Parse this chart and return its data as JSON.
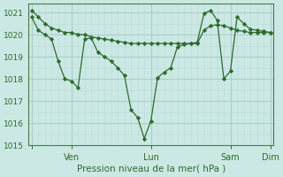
{
  "background_color": "#cce8e4",
  "grid_color_major": "#a8cfc9",
  "grid_color_minor": "#b8ddd8",
  "line_color": "#2d6b2d",
  "marker_color": "#2d6b2d",
  "x_ticks_positions": [
    0,
    6,
    18,
    30,
    36
  ],
  "x_ticks_labels": [
    "",
    "Ven",
    "Lun",
    "Sam",
    "Dim"
  ],
  "series1_x": [
    0,
    1,
    2,
    3,
    4,
    5,
    6,
    7,
    8,
    9,
    10,
    11,
    12,
    13,
    14,
    15,
    16,
    17,
    18,
    19,
    20,
    21,
    22,
    23,
    24,
    25,
    26,
    27,
    28,
    29,
    30,
    31,
    32,
    33,
    34,
    35,
    36
  ],
  "series1_y": [
    1021.1,
    1020.8,
    1020.5,
    1020.3,
    1020.2,
    1020.1,
    1020.1,
    1020.0,
    1020.0,
    1019.9,
    1019.85,
    1019.8,
    1019.75,
    1019.7,
    1019.65,
    1019.6,
    1019.6,
    1019.6,
    1019.6,
    1019.6,
    1019.6,
    1019.6,
    1019.6,
    1019.6,
    1019.6,
    1019.6,
    1020.2,
    1020.4,
    1020.45,
    1020.4,
    1020.3,
    1020.2,
    1020.15,
    1020.1,
    1020.1,
    1020.1,
    1020.1
  ],
  "series2_x": [
    0,
    1,
    2,
    3,
    4,
    5,
    6,
    7,
    8,
    9,
    10,
    11,
    12,
    13,
    14,
    15,
    16,
    17,
    18,
    19,
    20,
    21,
    22,
    23,
    24,
    25,
    26,
    27,
    28,
    29,
    30,
    31,
    32,
    33,
    34,
    35,
    36
  ],
  "series2_y": [
    1020.8,
    1020.2,
    1020.0,
    1019.8,
    1018.8,
    1018.0,
    1017.9,
    1017.6,
    1019.8,
    1019.85,
    1019.2,
    1019.0,
    1018.8,
    1018.5,
    1018.15,
    1016.6,
    1016.25,
    1015.3,
    1016.1,
    1018.05,
    1018.3,
    1018.5,
    1019.45,
    1019.55,
    1019.6,
    1019.65,
    1020.95,
    1021.1,
    1020.65,
    1018.0,
    1018.35,
    1020.8,
    1020.5,
    1020.25,
    1020.2,
    1020.15,
    1020.1
  ],
  "ylabel": "Pression niveau de la mer( hPa )",
  "ylim": [
    1015.0,
    1021.4
  ],
  "yticks": [
    1015,
    1016,
    1017,
    1018,
    1019,
    1020,
    1021
  ],
  "xlim": [
    -0.5,
    36.5
  ],
  "figsize": [
    3.2,
    2.0
  ],
  "dpi": 100
}
